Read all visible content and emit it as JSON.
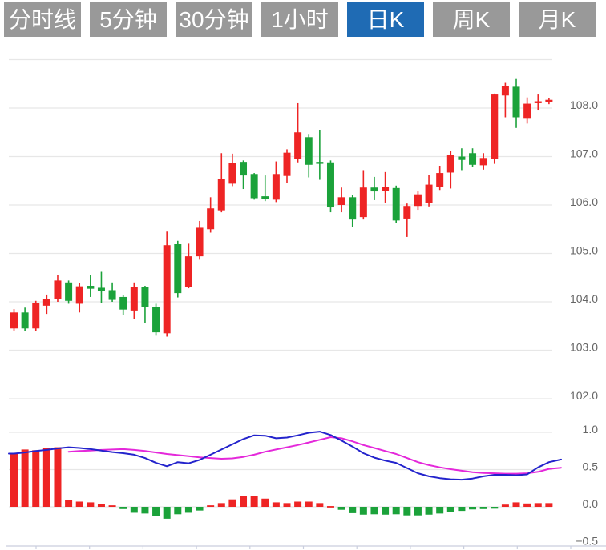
{
  "toolbar": {
    "active_index": 4,
    "tabs": [
      {
        "label": "分时线"
      },
      {
        "label": "5分钟"
      },
      {
        "label": "30分钟"
      },
      {
        "label": "1小时"
      },
      {
        "label": "日K"
      },
      {
        "label": "周K"
      },
      {
        "label": "月K"
      }
    ]
  },
  "colors": {
    "up": "#ee2424",
    "down": "#1ba23a",
    "dif_line": "#2323cc",
    "dea_line": "#e428da",
    "tab_bg": "#999999",
    "tab_active_bg": "#1f6bb4",
    "tab_text": "#ffffff",
    "grid": "#e7e7e7",
    "axis": "#c9cede",
    "label_text": "#666666"
  },
  "chart_data": {
    "type": "candlestick",
    "title": "",
    "legend_position": "none",
    "grid": true,
    "panels": [
      {
        "name": "price",
        "ylim": [
          101.6,
          109.1
        ],
        "gridlines": [
          109,
          108,
          107,
          106,
          105,
          104,
          103,
          102
        ],
        "tick_labels": [
          {
            "value": 108,
            "label": "108.0"
          },
          {
            "value": 107,
            "label": "107.0"
          },
          {
            "value": 106,
            "label": "106.0"
          },
          {
            "value": 105,
            "label": "105.0"
          },
          {
            "value": 104,
            "label": "104.0"
          },
          {
            "value": 103,
            "label": "103.0"
          },
          {
            "value": 102,
            "label": "102.0"
          }
        ],
        "candles": [
          {
            "o": 103.45,
            "h": 103.85,
            "l": 103.4,
            "c": 103.78
          },
          {
            "o": 103.78,
            "h": 103.88,
            "l": 103.4,
            "c": 103.45
          },
          {
            "o": 103.45,
            "h": 104.02,
            "l": 103.4,
            "c": 103.97
          },
          {
            "o": 103.92,
            "h": 104.15,
            "l": 103.75,
            "c": 104.06
          },
          {
            "o": 104.05,
            "h": 104.55,
            "l": 104.0,
            "c": 104.44
          },
          {
            "o": 104.4,
            "h": 104.44,
            "l": 103.96,
            "c": 104.02
          },
          {
            "o": 103.96,
            "h": 104.38,
            "l": 103.78,
            "c": 104.32
          },
          {
            "o": 104.33,
            "h": 104.56,
            "l": 104.1,
            "c": 104.27
          },
          {
            "o": 104.29,
            "h": 104.62,
            "l": 103.98,
            "c": 104.23
          },
          {
            "o": 104.24,
            "h": 104.4,
            "l": 104.0,
            "c": 104.04
          },
          {
            "o": 104.1,
            "h": 104.14,
            "l": 103.72,
            "c": 103.84
          },
          {
            "o": 103.82,
            "h": 104.4,
            "l": 103.64,
            "c": 104.31
          },
          {
            "o": 104.3,
            "h": 104.33,
            "l": 103.56,
            "c": 103.89
          },
          {
            "o": 103.89,
            "h": 103.96,
            "l": 103.3,
            "c": 103.37
          },
          {
            "o": 103.35,
            "h": 105.45,
            "l": 103.28,
            "c": 105.17
          },
          {
            "o": 105.19,
            "h": 105.26,
            "l": 104.09,
            "c": 104.18
          },
          {
            "o": 104.31,
            "h": 105.2,
            "l": 104.28,
            "c": 104.94
          },
          {
            "o": 104.94,
            "h": 105.67,
            "l": 104.87,
            "c": 105.53
          },
          {
            "o": 105.5,
            "h": 106.16,
            "l": 105.43,
            "c": 105.93
          },
          {
            "o": 105.89,
            "h": 107.07,
            "l": 105.85,
            "c": 106.53
          },
          {
            "o": 106.44,
            "h": 107.06,
            "l": 106.39,
            "c": 106.86
          },
          {
            "o": 106.89,
            "h": 106.92,
            "l": 106.33,
            "c": 106.61
          },
          {
            "o": 106.64,
            "h": 106.66,
            "l": 106.11,
            "c": 106.14
          },
          {
            "o": 106.18,
            "h": 106.61,
            "l": 106.08,
            "c": 106.12
          },
          {
            "o": 106.11,
            "h": 106.9,
            "l": 106.06,
            "c": 106.64
          },
          {
            "o": 106.6,
            "h": 107.15,
            "l": 106.46,
            "c": 107.08
          },
          {
            "o": 106.95,
            "h": 108.1,
            "l": 106.88,
            "c": 107.5
          },
          {
            "o": 107.4,
            "h": 107.45,
            "l": 106.57,
            "c": 106.83
          },
          {
            "o": 106.89,
            "h": 107.55,
            "l": 106.52,
            "c": 106.85
          },
          {
            "o": 106.88,
            "h": 106.92,
            "l": 105.85,
            "c": 105.95
          },
          {
            "o": 106.0,
            "h": 106.36,
            "l": 105.85,
            "c": 106.16
          },
          {
            "o": 106.16,
            "h": 106.2,
            "l": 105.55,
            "c": 105.7
          },
          {
            "o": 105.75,
            "h": 106.72,
            "l": 105.7,
            "c": 106.36
          },
          {
            "o": 106.36,
            "h": 106.58,
            "l": 106.1,
            "c": 106.28
          },
          {
            "o": 106.29,
            "h": 106.68,
            "l": 106.05,
            "c": 106.37
          },
          {
            "o": 106.35,
            "h": 106.4,
            "l": 105.62,
            "c": 105.68
          },
          {
            "o": 105.72,
            "h": 106.03,
            "l": 105.34,
            "c": 105.98
          },
          {
            "o": 105.98,
            "h": 106.28,
            "l": 105.9,
            "c": 106.22
          },
          {
            "o": 106.04,
            "h": 106.62,
            "l": 105.97,
            "c": 106.42
          },
          {
            "o": 106.38,
            "h": 106.81,
            "l": 106.31,
            "c": 106.66
          },
          {
            "o": 106.67,
            "h": 107.12,
            "l": 106.34,
            "c": 107.04
          },
          {
            "o": 107.0,
            "h": 107.17,
            "l": 106.72,
            "c": 106.93
          },
          {
            "o": 107.07,
            "h": 107.17,
            "l": 106.79,
            "c": 106.83
          },
          {
            "o": 106.82,
            "h": 107.07,
            "l": 106.73,
            "c": 106.97
          },
          {
            "o": 106.95,
            "h": 108.3,
            "l": 106.85,
            "c": 108.28
          },
          {
            "o": 108.26,
            "h": 108.52,
            "l": 107.81,
            "c": 108.45
          },
          {
            "o": 108.44,
            "h": 108.6,
            "l": 107.59,
            "c": 107.81
          },
          {
            "o": 107.78,
            "h": 108.22,
            "l": 107.68,
            "c": 108.09
          },
          {
            "o": 108.1,
            "h": 108.28,
            "l": 107.95,
            "c": 108.14
          },
          {
            "o": 108.13,
            "h": 108.21,
            "l": 108.08,
            "c": 108.17
          }
        ]
      },
      {
        "name": "macd",
        "ylim": [
          -0.55,
          1.1
        ],
        "gridlines": [
          1.0,
          0.5,
          0.0
        ],
        "tick_labels": [
          {
            "value": 1.0,
            "label": "1.0"
          },
          {
            "value": 0.5,
            "label": "0.5"
          },
          {
            "value": 0.0,
            "label": "0.0"
          },
          {
            "value": -0.5,
            "label": "−0.5"
          }
        ],
        "histogram": [
          0.71,
          0.77,
          0.76,
          0.79,
          0.8,
          0.09,
          0.07,
          0.06,
          0.04,
          0.02,
          -0.03,
          -0.08,
          -0.09,
          -0.12,
          -0.16,
          -0.1,
          -0.08,
          -0.05,
          0.02,
          0.05,
          0.1,
          0.14,
          0.15,
          0.11,
          0.06,
          0.05,
          0.07,
          0.07,
          0.05,
          0.01,
          -0.04,
          -0.085,
          -0.105,
          -0.1,
          -0.105,
          -0.1,
          -0.115,
          -0.115,
          -0.105,
          -0.09,
          -0.075,
          -0.055,
          -0.035,
          -0.03,
          -0.025,
          0.03,
          0.06,
          0.045,
          0.05,
          0.05
        ],
        "series": [
          {
            "name": "DIF",
            "values": [
              0.715,
              0.73,
              0.75,
              0.765,
              0.785,
              0.8,
              0.79,
              0.775,
              0.755,
              0.735,
              0.72,
              0.7,
              0.655,
              0.59,
              0.545,
              0.6,
              0.585,
              0.63,
              0.7,
              0.77,
              0.84,
              0.91,
              0.96,
              0.955,
              0.92,
              0.93,
              0.96,
              0.995,
              1.01,
              0.965,
              0.89,
              0.81,
              0.72,
              0.66,
              0.62,
              0.59,
              0.52,
              0.45,
              0.41,
              0.385,
              0.37,
              0.365,
              0.38,
              0.41,
              0.43,
              0.43,
              0.425,
              0.435,
              0.53,
              0.6
            ]
          },
          {
            "name": "DEA",
            "values": [
              null,
              null,
              null,
              null,
              null,
              0.74,
              0.75,
              0.755,
              0.765,
              0.77,
              0.775,
              0.765,
              0.75,
              0.73,
              0.71,
              0.695,
              0.68,
              0.665,
              0.655,
              0.645,
              0.65,
              0.67,
              0.7,
              0.74,
              0.77,
              0.8,
              0.83,
              0.865,
              0.9,
              0.935,
              0.92,
              0.88,
              0.83,
              0.79,
              0.75,
              0.71,
              0.655,
              0.6,
              0.56,
              0.53,
              0.505,
              0.485,
              0.465,
              0.455,
              0.45,
              0.445,
              0.445,
              0.45,
              0.47,
              0.51
            ]
          }
        ]
      }
    ]
  }
}
